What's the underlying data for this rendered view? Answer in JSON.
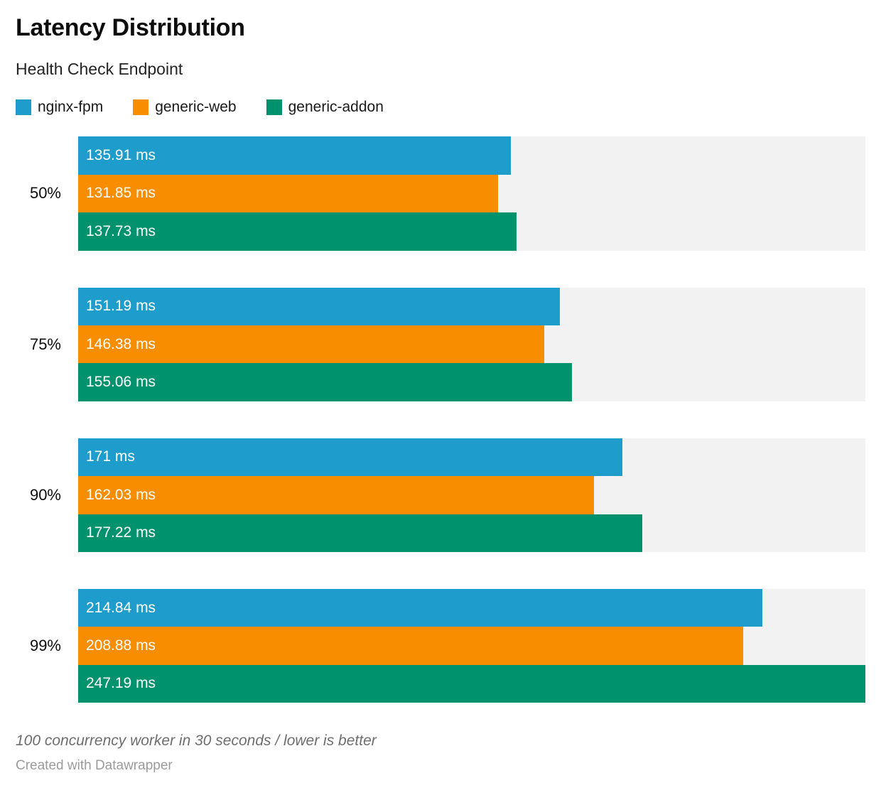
{
  "header": {
    "title": "Latency Distribution",
    "subtitle": "Health Check Endpoint"
  },
  "legend": {
    "items": [
      {
        "label": "nginx-fpm",
        "color": "#1E9CCB"
      },
      {
        "label": "generic-web",
        "color": "#F98D00"
      },
      {
        "label": "generic-addon",
        "color": "#00926D"
      }
    ]
  },
  "chart_data": {
    "type": "bar",
    "orientation": "horizontal",
    "title": "Latency Distribution",
    "subtitle": "Health Check Endpoint",
    "unit": "ms",
    "categories": [
      "50%",
      "75%",
      "90%",
      "99%"
    ],
    "series": [
      {
        "name": "nginx-fpm",
        "color": "#1E9CCB",
        "values": [
          135.91,
          151.19,
          171,
          214.84
        ]
      },
      {
        "name": "generic-web",
        "color": "#F98D00",
        "values": [
          131.85,
          146.38,
          162.03,
          208.88
        ]
      },
      {
        "name": "generic-addon",
        "color": "#00926D",
        "values": [
          137.73,
          155.06,
          177.22,
          247.19
        ]
      }
    ],
    "value_labels": [
      [
        "135.91 ms",
        "131.85 ms",
        "137.73 ms"
      ],
      [
        "151.19 ms",
        "146.38 ms",
        "155.06 ms"
      ],
      [
        "171 ms",
        "162.03 ms",
        "177.22 ms"
      ],
      [
        "214.84 ms",
        "208.88 ms",
        "247.19 ms"
      ]
    ],
    "xlim": [
      0,
      247.19
    ],
    "track_color": "#f2f2f2",
    "grid": false,
    "legend_position": "top-left"
  },
  "footer": {
    "note": "100 concurrency worker in 30 seconds / lower is better",
    "attribution": "Created with Datawrapper"
  }
}
